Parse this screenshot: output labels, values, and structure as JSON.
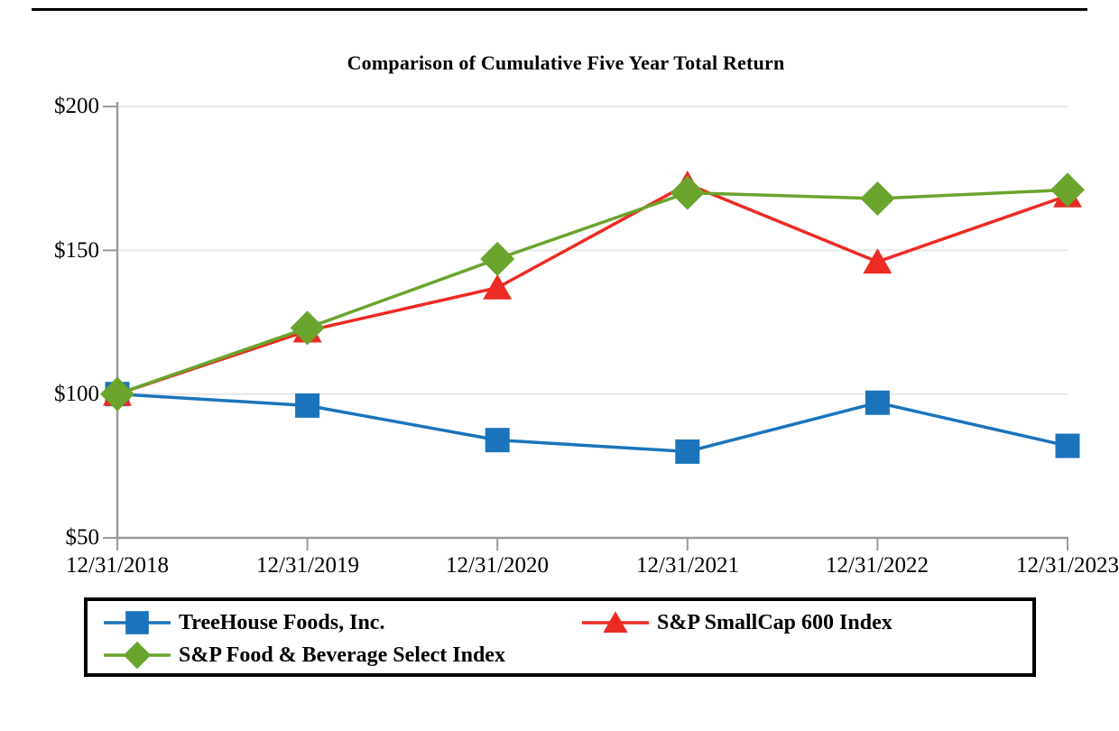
{
  "chart_data": {
    "type": "line",
    "title": "Comparison of Cumulative Five Year Total Return",
    "x": [
      "12/31/2018",
      "12/31/2019",
      "12/31/2020",
      "12/31/2021",
      "12/31/2022",
      "12/31/2023"
    ],
    "y_ticks": [
      "$200",
      "$150",
      "$100",
      "$50"
    ],
    "y_tick_values": [
      200,
      150,
      100,
      50
    ],
    "ylim": [
      50,
      200
    ],
    "grid": true,
    "legend_position": "bottom-boxed",
    "axis_color": "#9A9A9A",
    "grid_color": "#E8E8E8",
    "series": [
      {
        "name": "TreeHouse Foods, Inc.",
        "marker": "square",
        "color": "#1B74BB",
        "values": [
          100,
          96,
          84,
          80,
          97,
          82
        ]
      },
      {
        "name": "S&P SmallCap 600 Index",
        "marker": "triangle",
        "color": "#EC2B24",
        "values": [
          100,
          122,
          137,
          173,
          146,
          169
        ]
      },
      {
        "name": "S&P Food & Beverage Select Index",
        "marker": "diamond",
        "color": "#6AA42D",
        "values": [
          100,
          123,
          147,
          170,
          168,
          171
        ]
      }
    ]
  }
}
